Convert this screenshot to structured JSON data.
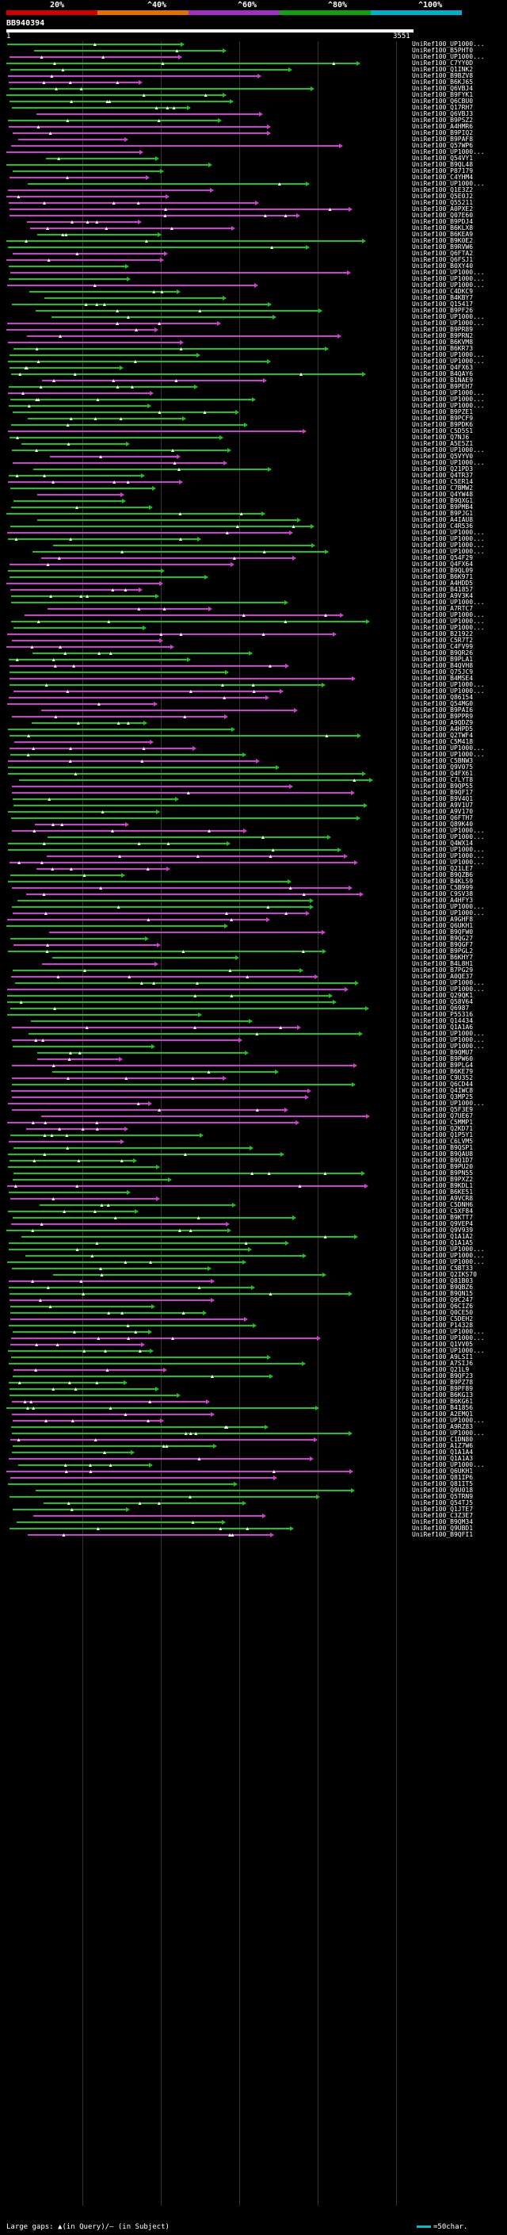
{
  "legend": {
    "items": [
      {
        "label": "20%",
        "color": "#d40000"
      },
      {
        "label": "^40%",
        "color": "#e07000"
      },
      {
        "label": "^60%",
        "color": "#a030c0"
      },
      {
        "label": "^80%",
        "color": "#10a010"
      },
      {
        "label": "^100%",
        "color": "#00b0c8"
      }
    ]
  },
  "query": {
    "id": "BB940394",
    "start_label": "1",
    "end_label": "3551"
  },
  "colors": {
    "green": "#22c022",
    "magenta": "#d040d0",
    "background": "#000000"
  },
  "hits": [
    "UniRef100_UP1000...",
    "UniRef100_B5PHT0",
    "UniRef100_UP1000...",
    "UniRef100_C7YY0D",
    "UniRef100_Q1INK2",
    "UniRef100_B9BZV8",
    "UniRef100_B6KJ65",
    "UniRef100_Q6VBJ4",
    "UniRef100_B9FYK1",
    "UniRef100_Q6CBU0",
    "UniRef100_Q17RH7",
    "UniRef100_Q6VBJ3",
    "UniRef100_B9PSZ2",
    "UniRef100_A4HMR6",
    "UniRef100_B9PIQ2",
    "UniRef100_B9PAF8",
    "UniRef100_Q57WP6",
    "UniRef100_UP1000...",
    "UniRef100_Q54VY1",
    "UniRef100_B9QL48",
    "UniRef100_P87179",
    "UniRef100_C4YHM4",
    "UniRef100_UP1000...",
    "UniRef100_Q1E3Z2",
    "UniRef100_Q5E0J2",
    "UniRef100_Q55211",
    "UniRef100_A0PXE2",
    "UniRef100_Q07E60",
    "UniRef100_B9PDJ4",
    "UniRef100_B6KLX8",
    "UniRef100_B6KEA9",
    "UniRef100_B9K0E2",
    "UniRef100_B9RVW6",
    "UniRef100_Q6FTA2",
    "UniRef100_Q6FSJ1",
    "UniRef100_B0XY40",
    "UniRef100_UP1000...",
    "UniRef100_UP1000...",
    "UniRef100_UP1000...",
    "UniRef100_C4DKC9",
    "UniRef100_B4KBY7",
    "UniRef100_Q15417",
    "UniRef100_B9PF26",
    "UniRef100_UP1000...",
    "UniRef100_UP1000...",
    "UniRef100_B9PR89",
    "UniRef100_B9PRN2",
    "UniRef100_B6KVM8",
    "UniRef100_B6KR73",
    "UniRef100_UP1000...",
    "UniRef100_UP1000...",
    "UniRef100_Q4FX63",
    "UniRef100_B4QAY6",
    "UniRef100_B1NAE9",
    "UniRef100_B9PEH7",
    "UniRef100_UP1000...",
    "UniRef100_UP1000...",
    "UniRef100_UP1000...",
    "UniRef100_B9PZE1",
    "UniRef100_B9PCF9",
    "UniRef100_B9PDK6",
    "UniRef100_C5D5S1",
    "UniRef100_Q7NJ6",
    "UniRef100_A5E5Z1",
    "UniRef100_UP1000...",
    "UniRef100_Q5VYV0",
    "UniRef100_UP1000...",
    "UniRef100_Q21PD3",
    "UniRef100_Q4TR37",
    "UniRef100_C5ER14",
    "UniRef100_C7BMW2",
    "UniRef100_Q4YW48",
    "UniRef100_B9QXG1",
    "UniRef100_B9PMB4",
    "UniRef100_B9PJG1",
    "UniRef100_A4IAU8",
    "UniRef100_C4R536",
    "UniRef100_UP1000...",
    "UniRef100_UP1000...",
    "UniRef100_UP1000...",
    "UniRef100_UP1000...",
    "UniRef100_Q54F29",
    "UniRef100_Q4FX64",
    "UniRef100_B9QL09",
    "UniRef100_B6K971",
    "UniRef100_A4HDD5",
    "UniRef100_B41857",
    "UniRef100_A9V3K4",
    "UniRef100_UP1000...",
    "UniRef100_A7RTC7",
    "UniRef100_UP1000...",
    "UniRef100_UP1000...",
    "UniRef100_UP1000...",
    "UniRef100_B21922",
    "UniRef100_C5R7T2",
    "UniRef100_C4FV99",
    "UniRef100_B9QR26",
    "UniRef100_B9PLA1",
    "UniRef100_B4QVH8",
    "UniRef100_Q75JC9",
    "UniRef100_B4MSE4",
    "UniRef100_UP1000...",
    "UniRef100_UP1000...",
    "UniRef100_Q86154",
    "UniRef100_Q54MG0",
    "UniRef100_B9PAI6",
    "UniRef100_B9PPR9",
    "UniRef100_A9QDZ9",
    "UniRef100_A4HPD5",
    "UniRef100_Q2TWF4",
    "UniRef100_C5M418",
    "UniRef100_UP1000...",
    "UniRef100_UP1000...",
    "UniRef100_C5BNW3",
    "UniRef100_Q9V075",
    "UniRef100_Q4FX61",
    "UniRef100_C7LYT8",
    "UniRef100_B9QP55",
    "UniRef100_B9QF17",
    "UniRef100_B9V4Q1",
    "UniRef100_A9V1U7",
    "UniRef100_A9V170",
    "UniRef100_Q6FTH7",
    "UniRef100_Q89K40",
    "UniRef100_UP1000...",
    "UniRef100_UP1000...",
    "UniRef100_Q4WX14",
    "UniRef100_UP1000...",
    "UniRef100_UP1000...",
    "UniRef100_UP1000...",
    "UniRef100_Q21LE7",
    "UniRef100_B9QZB6",
    "UniRef100_B4KLS9",
    "UniRef100_C5B999",
    "UniRef100_C9SV38",
    "UniRef100_A4HFY3",
    "UniRef100_UP1000...",
    "UniRef100_UP1000...",
    "UniRef100_A9GHF8",
    "UniRef100_Q6UKH1",
    "UniRef100_B9QFW0",
    "UniRef100_B9QG27",
    "UniRef100_B9QGF7",
    "UniRef100_B9PGL2",
    "UniRef100_B6KHY7",
    "UniRef100_B4L8H1",
    "UniRef100_B7PG29",
    "UniRef100_A0QE37",
    "UniRef100_UP1000...",
    "UniRef100_UP1000...",
    "UniRef100_Q29QK1",
    "UniRef100_Q58V64",
    "UniRef100_Q6987",
    "UniRef100_P55316",
    "UniRef100_Q14434",
    "UniRef100_Q1A1A6",
    "UniRef100_UP1000...",
    "UniRef100_UP1000...",
    "UniRef100_UP1000...",
    "UniRef100_B9QMU7",
    "UniRef100_B9PW60",
    "UniRef100_B9PLG4",
    "UniRef100_B6KE79",
    "UniRef100_C9U352",
    "UniRef100_Q6CD44",
    "UniRef100_Q4IWC8",
    "UniRef100_Q3MP25",
    "UniRef100_UP1000...",
    "UniRef100_Q5F3E9",
    "UniRef100_Q7UE67",
    "UniRef100_C5MMP1",
    "UniRef100_Q2KD71",
    "UniRef100_Q1P5Y1",
    "UniRef100_C6LVM5",
    "UniRef100_B9QSP1",
    "UniRef100_B9QAU8",
    "UniRef100_B9Q1D7",
    "UniRef100_B9PU20",
    "UniRef100_B9PN55",
    "UniRef100_B9PXZ2",
    "UniRef100_B9KDL1",
    "UniRef100_B6KE51",
    "UniRef100_A9VCR8",
    "UniRef100_C5DNH6",
    "UniRef100_C5XF84",
    "UniRef100_B9KTT7",
    "UniRef100_Q9VEP4",
    "UniRef100_Q9V939",
    "UniRef100_Q1A1A2",
    "UniRef100_Q1A1A5",
    "UniRef100_UP1000...",
    "UniRef100_UP1000...",
    "UniRef100_UP1000...",
    "UniRef100_C5BT33",
    "UniRef100_Q2IKS70",
    "UniRef100_Q81B03",
    "UniRef100_B9QBZ6",
    "UniRef100_B9QN15",
    "UniRef100_Q9C247",
    "UniRef100_Q6CIZ6",
    "UniRef100_Q0CE50",
    "UniRef100_C5DEH2",
    "UniRef100_P14328",
    "UniRef100_UP1000...",
    "UniRef100_UP1000...",
    "UniRef100_Q1VV05",
    "UniRef100_UP1000...",
    "UniRef100_A9LSI1",
    "UniRef100_A7SIJ6",
    "UniRef100_Q21L9",
    "UniRef100_B9QF23",
    "UniRef100_B9PZ78",
    "UniRef100_B9PF89",
    "UniRef100_B6KG13",
    "UniRef100_B6KG61",
    "UniRef100_B41856",
    "UniRef100_A2EMQ1",
    "UniRef100_UP1000...",
    "UniRef100_A9RZ83",
    "UniRef100_UP1000...",
    "UniRef100_C1DN80",
    "UniRef100_A1Z7W6",
    "UniRef100_Q1A1A4",
    "UniRef100_Q1A1A3",
    "UniRef100_UP1000...",
    "UniRef100_Q6UKH1",
    "UniRef100_Q81IP6",
    "UniRef100_Q81IT5",
    "UniRef100_Q9U018",
    "UniRef100_Q5TRN9",
    "UniRef100_Q54TJ5",
    "UniRef100_Q1JTE7",
    "UniRef100_C3Z3E7",
    "UniRef100_B9QM34",
    "UniRef100_Q9UBD1",
    "UniRef100_B9QFI1"
  ],
  "footer": {
    "text": "Large gaps: ▲(in Query)/– (in Subject)",
    "scale_label": "=50char."
  }
}
